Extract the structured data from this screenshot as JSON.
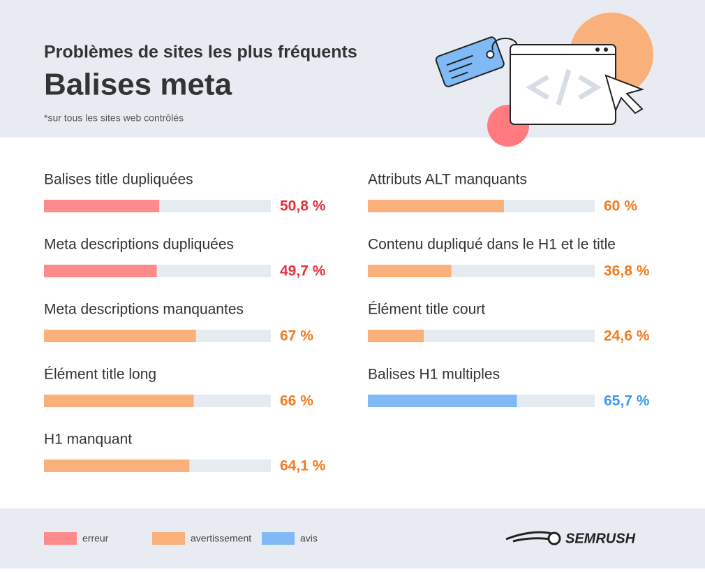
{
  "header": {
    "kicker": "Problèmes de sites les plus fréquents",
    "title": "Balises meta",
    "note": "*sur tous les sites web contrôlés"
  },
  "chart_data": {
    "type": "bar",
    "xlim": [
      0,
      100
    ],
    "categories": [
      "Balises title dupliquées",
      "Meta descriptions dupliquées",
      "Meta descriptions manquantes",
      "Élément title long",
      "H1 manquant",
      "Attributs ALT manquants",
      "Contenu dupliqué dans le H1 et le title",
      "Élément title court",
      "Balises H1 multiples"
    ],
    "values": [
      50.8,
      49.7,
      67,
      66,
      64.1,
      60,
      36.8,
      24.6,
      65.7
    ],
    "value_labels": [
      "50,8 %",
      "49,7 %",
      "67 %",
      "66 %",
      "64,1 %",
      "60 %",
      "36,8 %",
      "24,6 %",
      "65,7 %"
    ],
    "colors": [
      "#ff8a8c",
      "#ff8a8c",
      "#f9b07a",
      "#f9b07a",
      "#f9b07a",
      "#f9b07a",
      "#f9b07a",
      "#f9b07a",
      "#80baf6"
    ],
    "label_colors": [
      "#e8303a",
      "#e8303a",
      "#f27a1f",
      "#f27a1f",
      "#f27a1f",
      "#f27a1f",
      "#f27a1f",
      "#f27a1f",
      "#3b98f0"
    ],
    "legend": [
      {
        "name": "erreur",
        "color": "#ff8a8c"
      },
      {
        "name": "avertissement",
        "color": "#f9b07a"
      },
      {
        "name": "avis",
        "color": "#80baf6"
      }
    ]
  },
  "footer": {
    "brand": "SEMRUSH"
  }
}
